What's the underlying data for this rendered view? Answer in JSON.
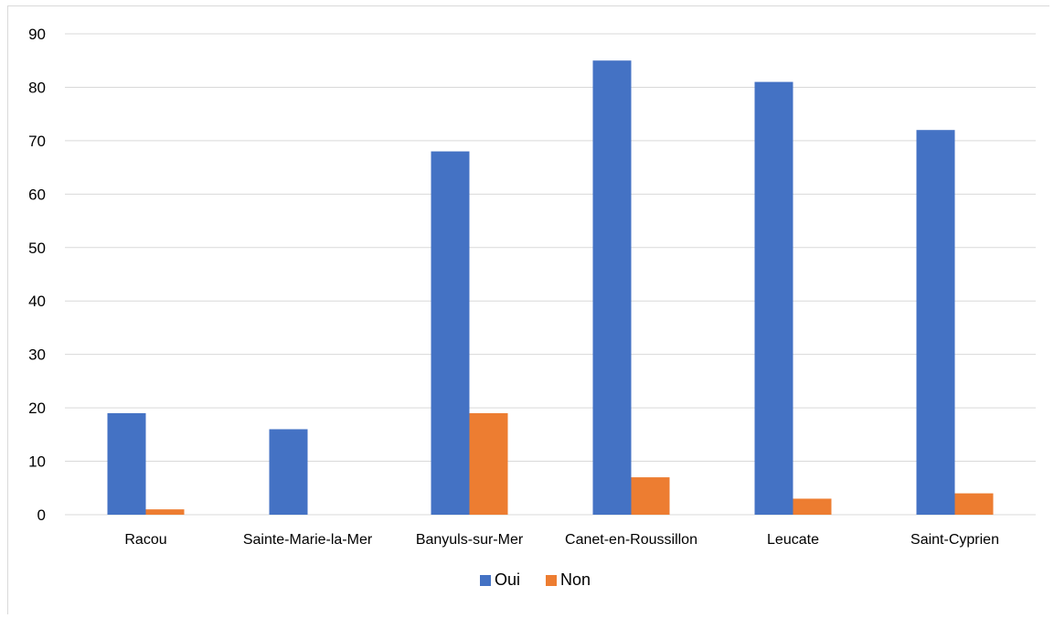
{
  "chart_data": {
    "type": "bar",
    "categories": [
      "Racou",
      "Sainte-Marie-la-Mer",
      "Banyuls-sur-Mer",
      "Canet-en-Roussillon",
      "Leucate",
      "Saint-Cyprien"
    ],
    "series": [
      {
        "name": "Oui",
        "values": [
          19,
          16,
          68,
          85,
          81,
          72
        ],
        "color": "#4472C4"
      },
      {
        "name": "Non",
        "values": [
          1,
          0,
          19,
          7,
          3,
          4
        ],
        "color": "#ED7D31"
      }
    ],
    "yticks": [
      "0",
      "10",
      "20",
      "30",
      "40",
      "50",
      "60",
      "70",
      "80",
      "90"
    ],
    "ylim": [
      0,
      90
    ],
    "grid": true,
    "legend_position": "bottom",
    "gridline_color": "#d9d9d9"
  }
}
